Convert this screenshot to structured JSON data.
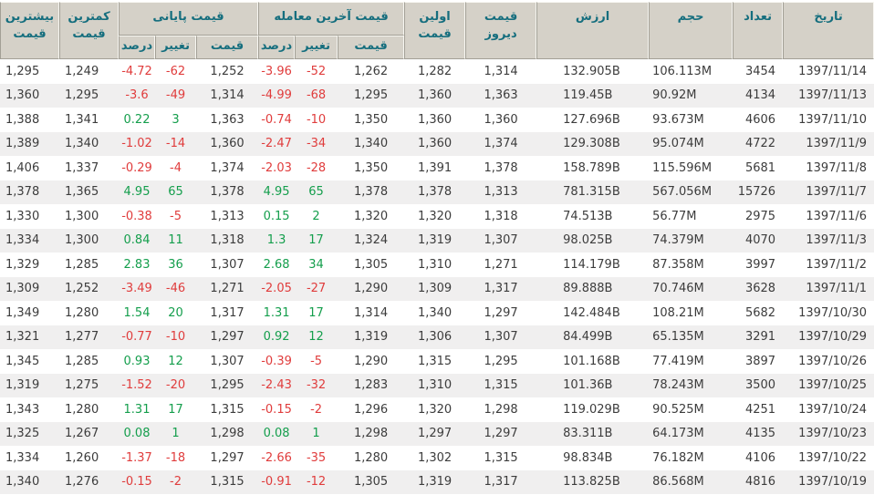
{
  "colors": {
    "header_background": "#d5d1c8",
    "header_text_teal": "#156e7e",
    "negative_red": "#e03c3c",
    "positive_green": "#149e4c",
    "row_stripe_gray": "#f0efef",
    "data_text": "#3c3c3c"
  },
  "table": {
    "header": {
      "col_date": "تاریخ",
      "col_count": "تعداد",
      "col_volume": "حجم",
      "col_value": "ارزش",
      "col_yesterday": "قیمت دیروز",
      "col_first": "اولین قیمت",
      "group_last_trade": "قیمت آخرین معامله",
      "group_closing": "قیمت پایانی",
      "col_price": "قیمت",
      "col_change": "تغییر",
      "col_percent": "درصد",
      "col_lowest": "کمترین قیمت",
      "col_highest": "بیشترین قیمت"
    },
    "rows": [
      {
        "date": "1397/11/14",
        "count": "3454",
        "volume": "106.113M",
        "value": "132.905B",
        "yesterday": "1,314",
        "first": "1,282",
        "last_price": "1,262",
        "last_change": "-52",
        "last_percent": "-3.96",
        "close_price": "1,252",
        "close_change": "-62",
        "close_percent": "-4.72",
        "low": "1,249",
        "high": "1,295"
      },
      {
        "date": "1397/11/13",
        "count": "4134",
        "volume": "90.92M",
        "value": "119.45B",
        "yesterday": "1,363",
        "first": "1,360",
        "last_price": "1,295",
        "last_change": "-68",
        "last_percent": "-4.99",
        "close_price": "1,314",
        "close_change": "-49",
        "close_percent": "-3.6",
        "low": "1,295",
        "high": "1,360"
      },
      {
        "date": "1397/11/10",
        "count": "4606",
        "volume": "93.673M",
        "value": "127.696B",
        "yesterday": "1,360",
        "first": "1,360",
        "last_price": "1,350",
        "last_change": "-10",
        "last_percent": "-0.74",
        "close_price": "1,363",
        "close_change": "3",
        "close_percent": "0.22",
        "low": "1,341",
        "high": "1,388"
      },
      {
        "date": "1397/11/9",
        "count": "4722",
        "volume": "95.074M",
        "value": "129.308B",
        "yesterday": "1,374",
        "first": "1,360",
        "last_price": "1,340",
        "last_change": "-34",
        "last_percent": "-2.47",
        "close_price": "1,360",
        "close_change": "-14",
        "close_percent": "-1.02",
        "low": "1,340",
        "high": "1,389"
      },
      {
        "date": "1397/11/8",
        "count": "5681",
        "volume": "115.596M",
        "value": "158.789B",
        "yesterday": "1,378",
        "first": "1,391",
        "last_price": "1,350",
        "last_change": "-28",
        "last_percent": "-2.03",
        "close_price": "1,374",
        "close_change": "-4",
        "close_percent": "-0.29",
        "low": "1,337",
        "high": "1,406"
      },
      {
        "date": "1397/11/7",
        "count": "15726",
        "volume": "567.056M",
        "value": "781.315B",
        "yesterday": "1,313",
        "first": "1,378",
        "last_price": "1,378",
        "last_change": "65",
        "last_percent": "4.95",
        "close_price": "1,378",
        "close_change": "65",
        "close_percent": "4.95",
        "low": "1,365",
        "high": "1,378"
      },
      {
        "date": "1397/11/6",
        "count": "2975",
        "volume": "56.77M",
        "value": "74.513B",
        "yesterday": "1,318",
        "first": "1,320",
        "last_price": "1,320",
        "last_change": "2",
        "last_percent": "0.15",
        "close_price": "1,313",
        "close_change": "-5",
        "close_percent": "-0.38",
        "low": "1,300",
        "high": "1,330"
      },
      {
        "date": "1397/11/3",
        "count": "4070",
        "volume": "74.379M",
        "value": "98.025B",
        "yesterday": "1,307",
        "first": "1,319",
        "last_price": "1,324",
        "last_change": "17",
        "last_percent": "1.3",
        "close_price": "1,318",
        "close_change": "11",
        "close_percent": "0.84",
        "low": "1,300",
        "high": "1,334"
      },
      {
        "date": "1397/11/2",
        "count": "3997",
        "volume": "87.358M",
        "value": "114.179B",
        "yesterday": "1,271",
        "first": "1,310",
        "last_price": "1,305",
        "last_change": "34",
        "last_percent": "2.68",
        "close_price": "1,307",
        "close_change": "36",
        "close_percent": "2.83",
        "low": "1,285",
        "high": "1,329"
      },
      {
        "date": "1397/11/1",
        "count": "3628",
        "volume": "70.746M",
        "value": "89.888B",
        "yesterday": "1,317",
        "first": "1,309",
        "last_price": "1,290",
        "last_change": "-27",
        "last_percent": "-2.05",
        "close_price": "1,271",
        "close_change": "-46",
        "close_percent": "-3.49",
        "low": "1,252",
        "high": "1,309"
      },
      {
        "date": "1397/10/30",
        "count": "5682",
        "volume": "108.21M",
        "value": "142.484B",
        "yesterday": "1,297",
        "first": "1,340",
        "last_price": "1,314",
        "last_change": "17",
        "last_percent": "1.31",
        "close_price": "1,317",
        "close_change": "20",
        "close_percent": "1.54",
        "low": "1,280",
        "high": "1,349"
      },
      {
        "date": "1397/10/29",
        "count": "3291",
        "volume": "65.135M",
        "value": "84.499B",
        "yesterday": "1,307",
        "first": "1,306",
        "last_price": "1,319",
        "last_change": "12",
        "last_percent": "0.92",
        "close_price": "1,297",
        "close_change": "-10",
        "close_percent": "-0.77",
        "low": "1,277",
        "high": "1,321"
      },
      {
        "date": "1397/10/26",
        "count": "3897",
        "volume": "77.419M",
        "value": "101.168B",
        "yesterday": "1,295",
        "first": "1,315",
        "last_price": "1,290",
        "last_change": "-5",
        "last_percent": "-0.39",
        "close_price": "1,307",
        "close_change": "12",
        "close_percent": "0.93",
        "low": "1,285",
        "high": "1,345"
      },
      {
        "date": "1397/10/25",
        "count": "3500",
        "volume": "78.243M",
        "value": "101.36B",
        "yesterday": "1,315",
        "first": "1,310",
        "last_price": "1,283",
        "last_change": "-32",
        "last_percent": "-2.43",
        "close_price": "1,295",
        "close_change": "-20",
        "close_percent": "-1.52",
        "low": "1,275",
        "high": "1,319"
      },
      {
        "date": "1397/10/24",
        "count": "4251",
        "volume": "90.525M",
        "value": "119.029B",
        "yesterday": "1,298",
        "first": "1,320",
        "last_price": "1,296",
        "last_change": "-2",
        "last_percent": "-0.15",
        "close_price": "1,315",
        "close_change": "17",
        "close_percent": "1.31",
        "low": "1,280",
        "high": "1,343"
      },
      {
        "date": "1397/10/23",
        "count": "4135",
        "volume": "64.173M",
        "value": "83.311B",
        "yesterday": "1,297",
        "first": "1,297",
        "last_price": "1,298",
        "last_change": "1",
        "last_percent": "0.08",
        "close_price": "1,298",
        "close_change": "1",
        "close_percent": "0.08",
        "low": "1,267",
        "high": "1,325"
      },
      {
        "date": "1397/10/22",
        "count": "4106",
        "volume": "76.182M",
        "value": "98.834B",
        "yesterday": "1,315",
        "first": "1,302",
        "last_price": "1,280",
        "last_change": "-35",
        "last_percent": "-2.66",
        "close_price": "1,297",
        "close_change": "-18",
        "close_percent": "-1.37",
        "low": "1,260",
        "high": "1,334"
      },
      {
        "date": "1397/10/19",
        "count": "4816",
        "volume": "86.568M",
        "value": "113.825B",
        "yesterday": "1,317",
        "first": "1,319",
        "last_price": "1,305",
        "last_change": "-12",
        "last_percent": "-0.91",
        "close_price": "1,315",
        "close_change": "-2",
        "close_percent": "-0.15",
        "low": "1,276",
        "high": "1,340"
      }
    ]
  }
}
